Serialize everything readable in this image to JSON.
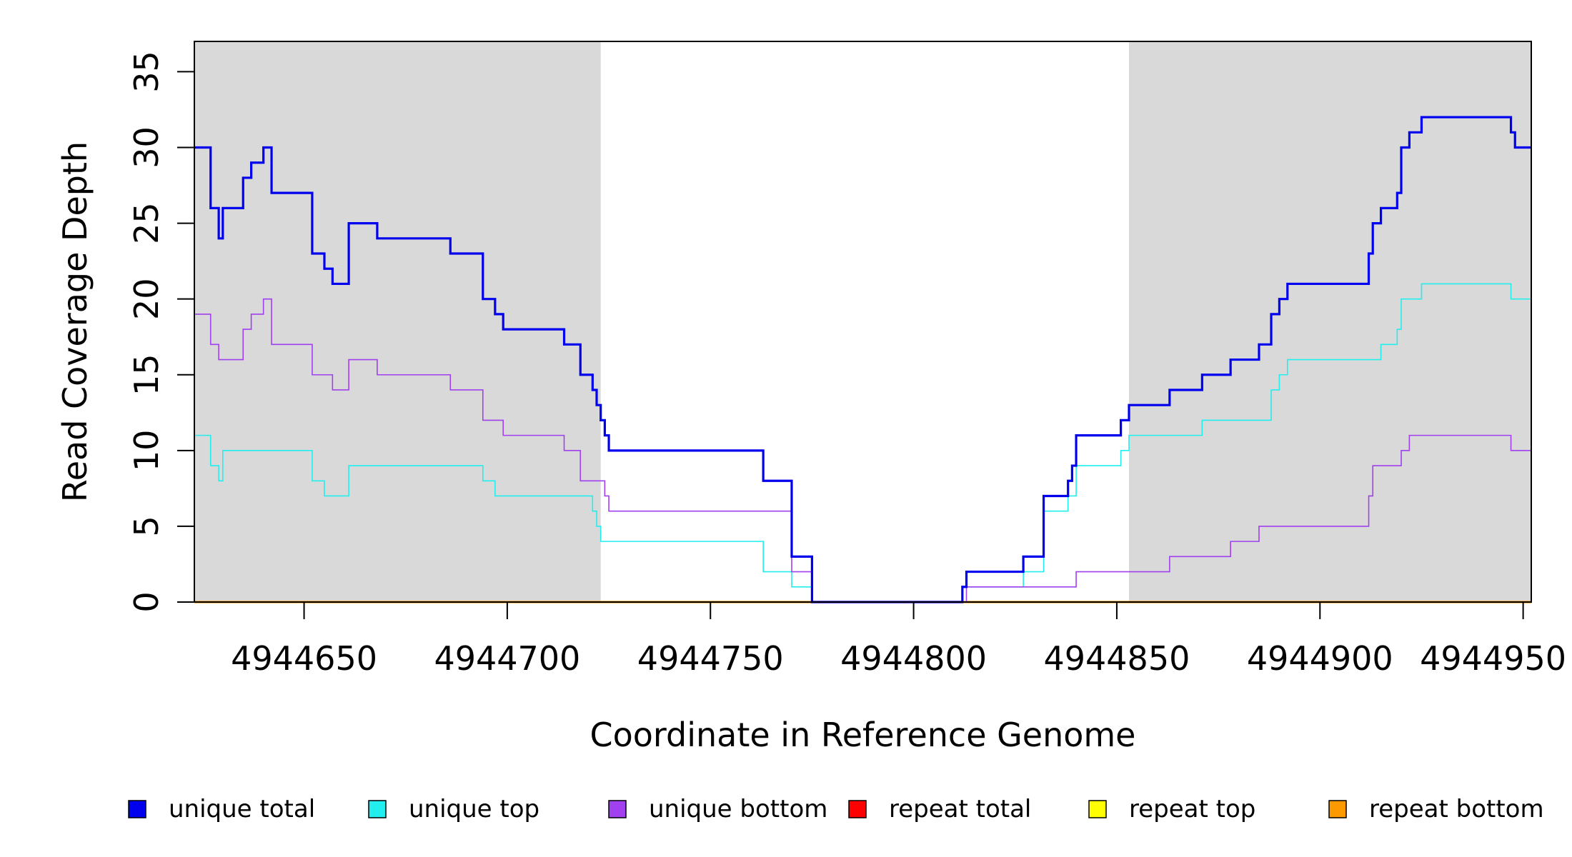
{
  "chart_data": {
    "type": "line",
    "title": "",
    "xlabel": "Coordinate in Reference Genome",
    "ylabel": "Read Coverage Depth",
    "xlim": [
      4944623,
      4944952
    ],
    "ylim": [
      0,
      37
    ],
    "x_ticks": [
      4944650,
      4944700,
      4944750,
      4944800,
      4944850,
      4944900,
      4944950
    ],
    "x_tick_labels": [
      "4944650",
      "4944700",
      "4944750",
      "4944800",
      "4944850",
      "4944900",
      "4944950"
    ],
    "y_ticks": [
      0,
      5,
      10,
      15,
      20,
      25,
      30,
      35
    ],
    "y_tick_labels": [
      "0",
      "5",
      "10",
      "15",
      "20",
      "25",
      "30",
      "35"
    ],
    "grid": false,
    "legend_position": "bottom",
    "shaded_regions": [
      {
        "x_start": 4944623,
        "x_end": 4944723
      },
      {
        "x_start": 4944853,
        "x_end": 4944952
      }
    ],
    "series": [
      {
        "name": "unique total",
        "color": "#0000ee",
        "weight": "bold",
        "steps": [
          [
            4944623,
            30
          ],
          [
            4944627,
            26
          ],
          [
            4944629,
            24
          ],
          [
            4944630,
            26
          ],
          [
            4944635,
            28
          ],
          [
            4944637,
            29
          ],
          [
            4944640,
            30
          ],
          [
            4944642,
            27
          ],
          [
            4944652,
            23
          ],
          [
            4944655,
            22
          ],
          [
            4944657,
            21
          ],
          [
            4944661,
            25
          ],
          [
            4944668,
            24
          ],
          [
            4944686,
            23
          ],
          [
            4944694,
            20
          ],
          [
            4944697,
            19
          ],
          [
            4944699,
            18
          ],
          [
            4944714,
            17
          ],
          [
            4944718,
            15
          ],
          [
            4944721,
            14
          ],
          [
            4944722,
            13
          ],
          [
            4944723,
            12
          ],
          [
            4944724,
            11
          ],
          [
            4944725,
            10
          ],
          [
            4944763,
            8
          ],
          [
            4944770,
            3
          ],
          [
            4944775,
            0
          ],
          [
            4944812,
            1
          ],
          [
            4944813,
            2
          ],
          [
            4944827,
            3
          ],
          [
            4944832,
            7
          ],
          [
            4944838,
            8
          ],
          [
            4944839,
            9
          ],
          [
            4944840,
            11
          ],
          [
            4944851,
            12
          ],
          [
            4944853,
            13
          ],
          [
            4944863,
            14
          ],
          [
            4944871,
            15
          ],
          [
            4944878,
            16
          ],
          [
            4944885,
            17
          ],
          [
            4944888,
            19
          ],
          [
            4944890,
            20
          ],
          [
            4944892,
            21
          ],
          [
            4944912,
            23
          ],
          [
            4944913,
            25
          ],
          [
            4944915,
            26
          ],
          [
            4944919,
            27
          ],
          [
            4944920,
            30
          ],
          [
            4944922,
            31
          ],
          [
            4944925,
            32
          ],
          [
            4944947,
            31
          ],
          [
            4944948,
            30
          ]
        ]
      },
      {
        "name": "unique top",
        "color": "#22eeee",
        "weight": "thin",
        "steps": [
          [
            4944623,
            11
          ],
          [
            4944627,
            9
          ],
          [
            4944629,
            8
          ],
          [
            4944630,
            10
          ],
          [
            4944652,
            8
          ],
          [
            4944655,
            7
          ],
          [
            4944661,
            9
          ],
          [
            4944694,
            8
          ],
          [
            4944697,
            7
          ],
          [
            4944721,
            6
          ],
          [
            4944722,
            5
          ],
          [
            4944723,
            4
          ],
          [
            4944763,
            2
          ],
          [
            4944770,
            1
          ],
          [
            4944775,
            0
          ],
          [
            4944812,
            1
          ],
          [
            4944827,
            2
          ],
          [
            4944832,
            6
          ],
          [
            4944838,
            7
          ],
          [
            4944840,
            9
          ],
          [
            4944851,
            10
          ],
          [
            4944853,
            11
          ],
          [
            4944871,
            12
          ],
          [
            4944888,
            14
          ],
          [
            4944890,
            15
          ],
          [
            4944892,
            16
          ],
          [
            4944915,
            17
          ],
          [
            4944919,
            18
          ],
          [
            4944920,
            20
          ],
          [
            4944925,
            21
          ],
          [
            4944947,
            20
          ]
        ]
      },
      {
        "name": "unique bottom",
        "color": "#a040ee",
        "weight": "thin",
        "steps": [
          [
            4944623,
            19
          ],
          [
            4944627,
            17
          ],
          [
            4944629,
            16
          ],
          [
            4944635,
            18
          ],
          [
            4944637,
            19
          ],
          [
            4944640,
            20
          ],
          [
            4944642,
            17
          ],
          [
            4944652,
            15
          ],
          [
            4944657,
            14
          ],
          [
            4944661,
            16
          ],
          [
            4944668,
            15
          ],
          [
            4944686,
            14
          ],
          [
            4944694,
            12
          ],
          [
            4944699,
            11
          ],
          [
            4944714,
            10
          ],
          [
            4944718,
            8
          ],
          [
            4944724,
            7
          ],
          [
            4944725,
            6
          ],
          [
            4944770,
            2
          ],
          [
            4944775,
            0
          ],
          [
            4944813,
            1
          ],
          [
            4944840,
            2
          ],
          [
            4944863,
            3
          ],
          [
            4944878,
            4
          ],
          [
            4944885,
            5
          ],
          [
            4944912,
            7
          ],
          [
            4944913,
            9
          ],
          [
            4944920,
            10
          ],
          [
            4944922,
            11
          ],
          [
            4944947,
            10
          ]
        ]
      },
      {
        "name": "repeat total",
        "color": "#ff0000",
        "weight": "thin",
        "steps": [
          [
            4944623,
            0
          ]
        ]
      },
      {
        "name": "repeat top",
        "color": "#ffff00",
        "weight": "thin",
        "steps": [
          [
            4944623,
            0
          ]
        ]
      },
      {
        "name": "repeat bottom",
        "color": "#ff9900",
        "weight": "bold",
        "steps": [
          [
            4944623,
            0
          ]
        ]
      }
    ]
  }
}
